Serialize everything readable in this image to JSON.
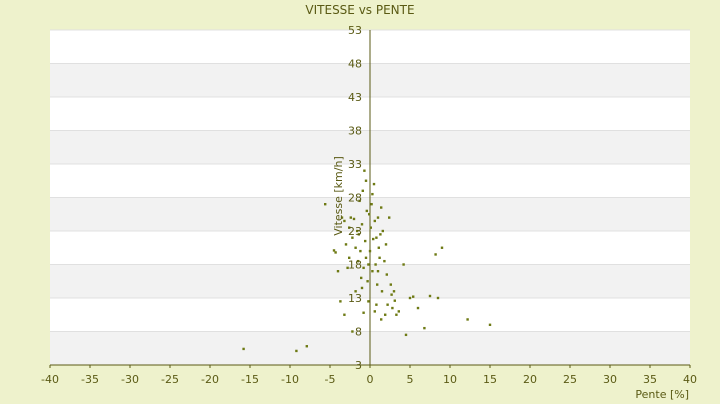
{
  "chart_data": {
    "type": "scatter",
    "title": "VITESSE vs PENTE",
    "xlabel": "Pente [%]",
    "ylabel": "Vitesse [km/h]",
    "xlim": [
      -40,
      40
    ],
    "ylim": [
      3,
      53
    ],
    "x_ticks": [
      -40,
      -35,
      -30,
      -25,
      -20,
      -15,
      -10,
      -5,
      0,
      5,
      10,
      15,
      20,
      25,
      30,
      35,
      40
    ],
    "y_ticks": [
      53,
      48,
      43,
      38,
      33,
      28,
      23,
      18,
      13,
      8,
      3
    ],
    "grid": "alternating horizontal bands",
    "colors": {
      "background": "#eef2cc",
      "band": "#f2f2f2",
      "plot": "#ffffff",
      "axis": "#5a5a14",
      "point": "#6e7a14"
    },
    "points": [
      [
        -15.8,
        5.4
      ],
      [
        -9.2,
        5.1
      ],
      [
        -7.9,
        5.8
      ],
      [
        -5.6,
        27.0
      ],
      [
        -4.5,
        20.1
      ],
      [
        -4.3,
        19.8
      ],
      [
        -3.7,
        12.5
      ],
      [
        -3.5,
        25.0
      ],
      [
        -3.2,
        24.5
      ],
      [
        -3.0,
        21.0
      ],
      [
        -2.8,
        17.5
      ],
      [
        -2.6,
        19.0
      ],
      [
        -2.4,
        25.0
      ],
      [
        -2.2,
        22.0
      ],
      [
        -2.0,
        24.8
      ],
      [
        -1.8,
        20.5
      ],
      [
        -1.6,
        23.0
      ],
      [
        -1.5,
        18.5
      ],
      [
        -1.4,
        22.5
      ],
      [
        -1.3,
        27.5
      ],
      [
        -1.2,
        20.0
      ],
      [
        -1.1,
        16.0
      ],
      [
        -1.0,
        24.0
      ],
      [
        -0.9,
        29.0
      ],
      [
        -0.8,
        17.5
      ],
      [
        -0.7,
        32.0
      ],
      [
        -0.6,
        21.5
      ],
      [
        -0.5,
        30.5
      ],
      [
        -0.4,
        26.0
      ],
      [
        -0.3,
        15.5
      ],
      [
        -0.2,
        18.0
      ],
      [
        -0.1,
        25.5
      ],
      [
        0.0,
        20.0
      ],
      [
        0.1,
        23.5
      ],
      [
        0.2,
        27.0
      ],
      [
        0.3,
        17.0
      ],
      [
        0.4,
        21.8
      ],
      [
        0.5,
        30.0
      ],
      [
        0.6,
        24.5
      ],
      [
        0.7,
        18.0
      ],
      [
        0.8,
        22.0
      ],
      [
        0.9,
        15.0
      ],
      [
        1.0,
        25.0
      ],
      [
        1.1,
        20.5
      ],
      [
        1.2,
        19.0
      ],
      [
        1.3,
        22.5
      ],
      [
        1.4,
        26.5
      ],
      [
        1.5,
        14.0
      ],
      [
        1.6,
        23.0
      ],
      [
        1.8,
        18.5
      ],
      [
        2.0,
        21.0
      ],
      [
        2.2,
        12.0
      ],
      [
        2.4,
        25.0
      ],
      [
        2.6,
        15.0
      ],
      [
        2.8,
        11.5
      ],
      [
        3.0,
        14.0
      ],
      [
        3.3,
        10.5
      ],
      [
        3.6,
        11.0
      ],
      [
        4.2,
        18.0
      ],
      [
        4.5,
        7.5
      ],
      [
        5.0,
        13.0
      ],
      [
        5.4,
        13.2
      ],
      [
        6.0,
        11.5
      ],
      [
        6.8,
        8.5
      ],
      [
        7.5,
        13.3
      ],
      [
        8.2,
        19.5
      ],
      [
        8.5,
        13.0
      ],
      [
        9.0,
        20.5
      ],
      [
        12.2,
        9.8
      ],
      [
        15.0,
        9.0
      ],
      [
        -3.2,
        10.5
      ],
      [
        -2.2,
        8.0
      ],
      [
        -1.0,
        14.5
      ],
      [
        -0.2,
        12.5
      ],
      [
        0.8,
        12.0
      ],
      [
        1.9,
        10.5
      ],
      [
        2.7,
        13.5
      ],
      [
        -4.0,
        17.0
      ],
      [
        -0.5,
        19.0
      ],
      [
        0.3,
        28.5
      ],
      [
        1.0,
        17.0
      ],
      [
        -1.8,
        14.0
      ],
      [
        2.1,
        16.5
      ],
      [
        -2.6,
        23.5
      ],
      [
        0.6,
        11.0
      ],
      [
        -0.8,
        10.8
      ],
      [
        1.4,
        9.8
      ],
      [
        3.1,
        12.6
      ]
    ]
  }
}
